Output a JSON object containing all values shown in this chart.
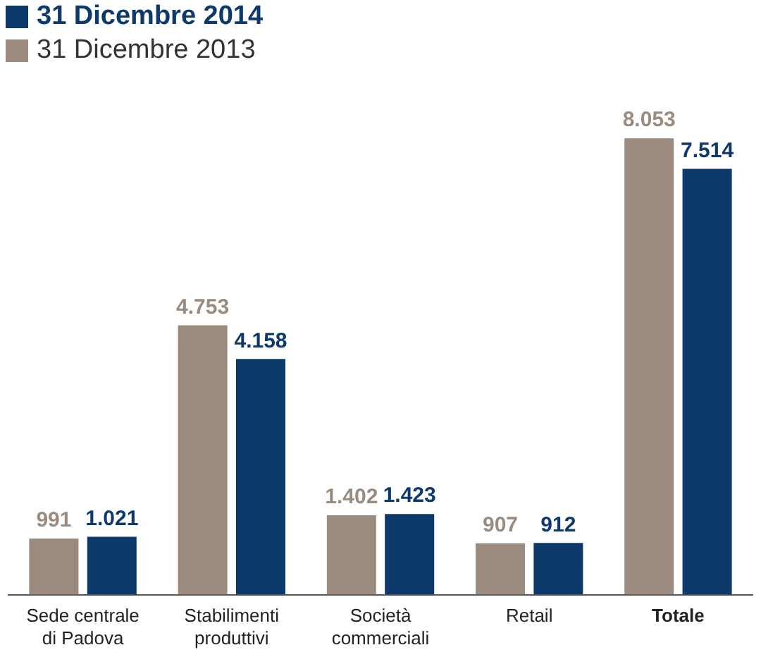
{
  "chart_data": {
    "type": "bar",
    "categories": [
      "Sede centrale di Padova",
      "Stabilimenti produttivi",
      "Società commerciali",
      "Retail",
      "Totale"
    ],
    "series": [
      {
        "name": "31 Dicembre 2013",
        "color": "#9a8b7e",
        "values": [
          991,
          4753,
          1402,
          907,
          8053
        ],
        "value_labels": [
          "991",
          "4.753",
          "1.402",
          "907",
          "8.053"
        ]
      },
      {
        "name": "31 Dicembre 2014",
        "color": "#0d3a6b",
        "values": [
          1021,
          4158,
          1423,
          912,
          7514
        ],
        "value_labels": [
          "1.021",
          "4.158",
          "1.423",
          "912",
          "7.514"
        ]
      }
    ],
    "legend": "top left",
    "grid": false
  }
}
